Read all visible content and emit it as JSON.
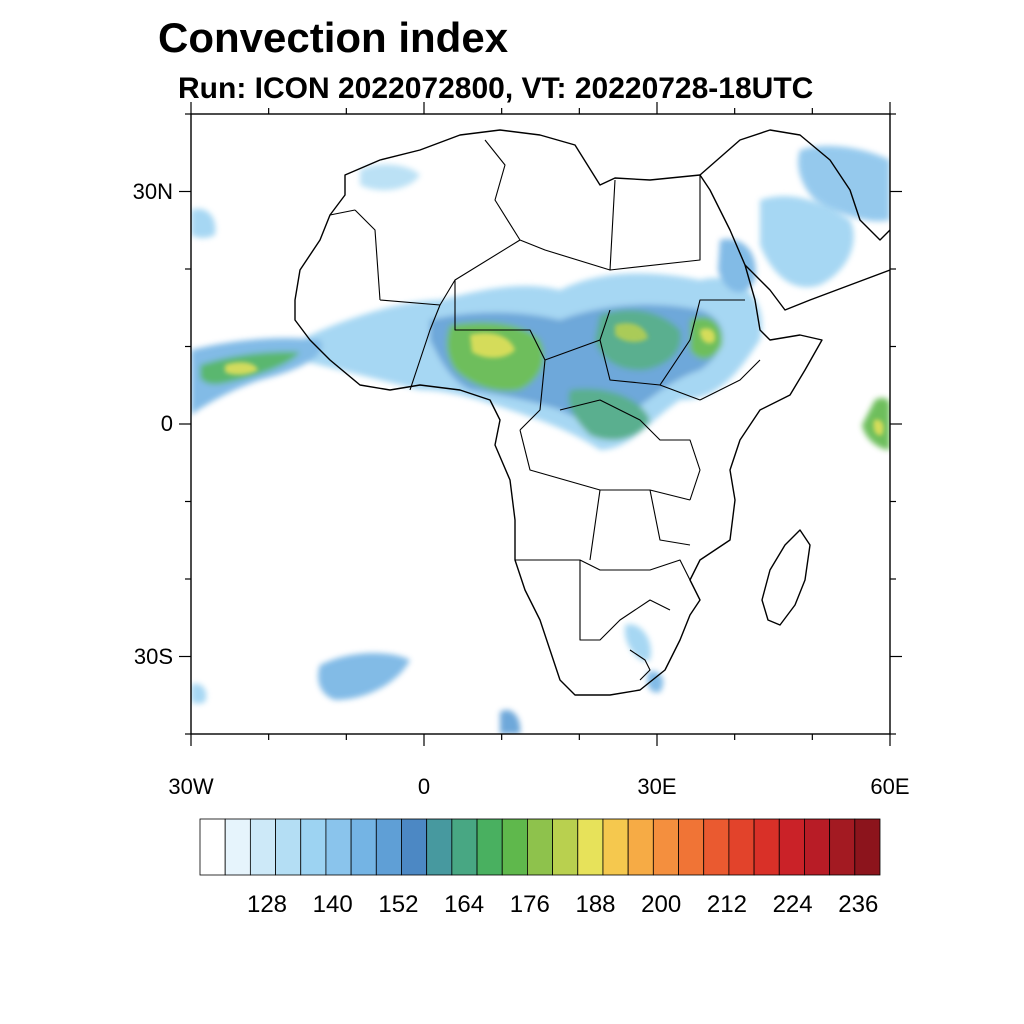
{
  "title": "Convection index",
  "subtitle": "Run: ICON 2022072800,  VT: 20220728-18UTC",
  "map": {
    "projection": "cylindrical equidistant",
    "lon_range": [
      -30,
      60
    ],
    "lat_range": [
      -40,
      40
    ],
    "lon_ticks": [
      {
        "value": -30,
        "label": "30W"
      },
      {
        "value": 0,
        "label": "0"
      },
      {
        "value": 30,
        "label": "30E"
      },
      {
        "value": 60,
        "label": "60E"
      }
    ],
    "lat_ticks": [
      {
        "value": 30,
        "label": "30N"
      },
      {
        "value": 0,
        "label": "0"
      },
      {
        "value": -30,
        "label": "30S"
      }
    ]
  },
  "colorbar": {
    "labels": [
      "128",
      "140",
      "152",
      "164",
      "176",
      "188",
      "200",
      "212",
      "224",
      "236"
    ],
    "colors": [
      "#ffffff",
      "#e6f4fc",
      "#cde9f8",
      "#b4def4",
      "#9dd3f2",
      "#8ac4ec",
      "#74b4e4",
      "#5f9fd6",
      "#4c88c4",
      "#47999f",
      "#48a783",
      "#49b060",
      "#5fb84c",
      "#8ec24c",
      "#b9d04f",
      "#e7e25a",
      "#f5c84e",
      "#f6ab45",
      "#f48f3e",
      "#f07436",
      "#ea5a30",
      "#e2432b",
      "#d93028",
      "#ca2228",
      "#b81c26",
      "#a31a22",
      "#8c141c"
    ]
  }
}
